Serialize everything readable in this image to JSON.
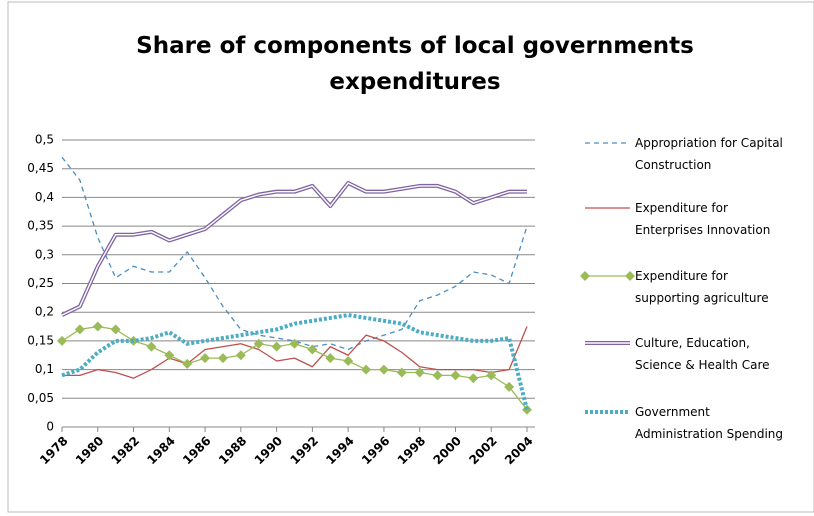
{
  "chart_data": {
    "type": "line",
    "title": "Share of components of local governments expenditures",
    "x": [
      1978,
      1979,
      1980,
      1981,
      1982,
      1983,
      1984,
      1985,
      1986,
      1987,
      1988,
      1989,
      1990,
      1991,
      1992,
      1993,
      1994,
      1995,
      1996,
      1997,
      1998,
      1999,
      2000,
      2001,
      2002,
      2003,
      2004
    ],
    "xlim": [
      1978,
      2004
    ],
    "xticks": [
      1978,
      1980,
      1982,
      1984,
      1986,
      1988,
      1990,
      1992,
      1994,
      1996,
      1998,
      2000,
      2002,
      2004
    ],
    "ylim": [
      0,
      0.5
    ],
    "yticks": [
      0,
      {
        "value": 0.05,
        "label": "0,05"
      },
      {
        "value": 0.1,
        "label": "0,1"
      },
      {
        "value": 0.15,
        "label": "0,15"
      },
      {
        "value": 0.2,
        "label": "0,2"
      },
      {
        "value": 0.25,
        "label": "0,25"
      },
      {
        "value": 0.3,
        "label": "0,3"
      },
      {
        "value": 0.35,
        "label": "0,35"
      },
      {
        "value": 0.4,
        "label": "0,4"
      },
      {
        "value": 0.45,
        "label": "0,45"
      },
      {
        "value": 0.5,
        "label": "0,5"
      }
    ],
    "grid": true,
    "legend": "right",
    "series": [
      {
        "name": "Appropriation for Capital Construction",
        "color": "#4a8ec0",
        "line_style": "dashed",
        "values": [
          0.47,
          0.43,
          0.33,
          0.26,
          0.28,
          0.27,
          0.27,
          0.305,
          0.26,
          0.21,
          0.17,
          0.16,
          0.155,
          0.15,
          0.14,
          0.145,
          0.135,
          0.15,
          0.16,
          0.17,
          0.22,
          0.23,
          0.245,
          0.27,
          0.265,
          0.25,
          0.35
        ]
      },
      {
        "name": "Expenditure for Enterprises Innovation",
        "color": "#c0504d",
        "line_style": "solid",
        "values": [
          0.09,
          0.09,
          0.1,
          0.095,
          0.085,
          0.1,
          0.12,
          0.11,
          0.135,
          0.14,
          0.145,
          0.135,
          0.115,
          0.12,
          0.105,
          0.14,
          0.125,
          0.16,
          0.15,
          0.13,
          0.105,
          0.1,
          0.1,
          0.1,
          0.095,
          0.1,
          0.175
        ]
      },
      {
        "name": "Expenditure for supporting agriculture",
        "color": "#9bbb59",
        "line_style": "solid",
        "marker": "diamond",
        "values": [
          0.15,
          0.17,
          0.175,
          0.17,
          0.15,
          0.14,
          0.125,
          0.11,
          0.12,
          0.12,
          0.125,
          0.145,
          0.14,
          0.145,
          0.135,
          0.12,
          0.115,
          0.1,
          0.1,
          0.095,
          0.095,
          0.09,
          0.09,
          0.085,
          0.09,
          0.07,
          0.03
        ]
      },
      {
        "name": "Culture, Education, Science & Health Care",
        "color": "#8064a2",
        "line_style": "double",
        "values": [
          0.195,
          0.21,
          0.28,
          0.335,
          0.335,
          0.34,
          0.325,
          0.335,
          0.345,
          0.37,
          0.395,
          0.405,
          0.41,
          0.41,
          0.42,
          0.385,
          0.425,
          0.41,
          0.41,
          0.415,
          0.42,
          0.42,
          0.41,
          0.39,
          0.4,
          0.41,
          0.41
        ]
      },
      {
        "name": "Government Administration Spending",
        "color": "#4bacc6",
        "line_style": "dotted",
        "values": [
          0.09,
          0.1,
          0.13,
          0.15,
          0.15,
          0.155,
          0.165,
          0.145,
          0.15,
          0.155,
          0.16,
          0.165,
          0.17,
          0.18,
          0.185,
          0.19,
          0.195,
          0.19,
          0.185,
          0.18,
          0.165,
          0.16,
          0.155,
          0.15,
          0.15,
          0.155,
          0.03
        ]
      }
    ]
  }
}
